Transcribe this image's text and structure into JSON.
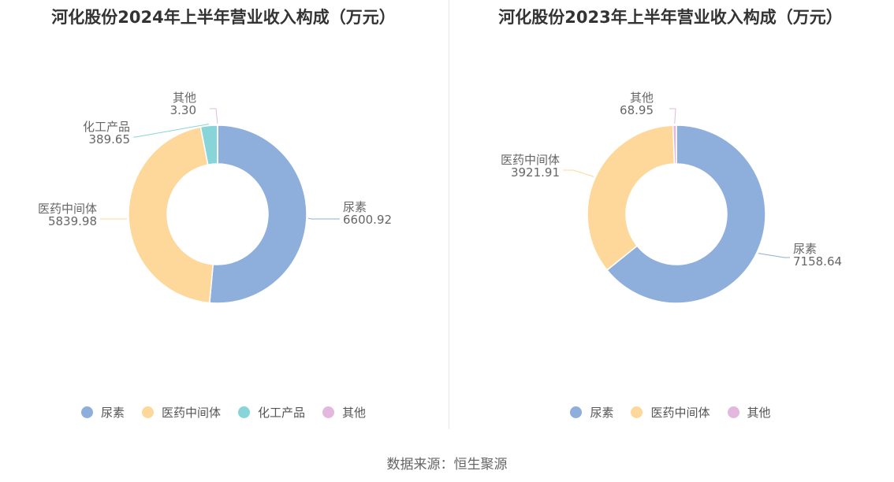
{
  "colors": {
    "尿素": "#8eaedb",
    "医药中间体": "#fdd89a",
    "化工产品": "#87d5d8",
    "其他": "#e3b8de"
  },
  "source": "数据来源：恒生聚源",
  "chart_data": [
    {
      "type": "pie",
      "title": "河化股份2024年上半年营业收入构成（万元）",
      "categories": [
        "尿素",
        "医药中间体",
        "化工产品",
        "其他"
      ],
      "values": [
        6600.92,
        5839.98,
        389.65,
        3.3
      ],
      "value_labels": [
        "6600.92",
        "5839.98",
        "389.65",
        "3.30"
      ],
      "legend": [
        "尿素",
        "医药中间体",
        "化工产品",
        "其他"
      ]
    },
    {
      "type": "pie",
      "title": "河化股份2023年上半年营业收入构成（万元）",
      "categories": [
        "尿素",
        "医药中间体",
        "其他"
      ],
      "values": [
        7158.64,
        3921.91,
        68.95
      ],
      "value_labels": [
        "7158.64",
        "3921.91",
        "68.95"
      ],
      "legend": [
        "尿素",
        "医药中间体",
        "其他"
      ]
    }
  ]
}
